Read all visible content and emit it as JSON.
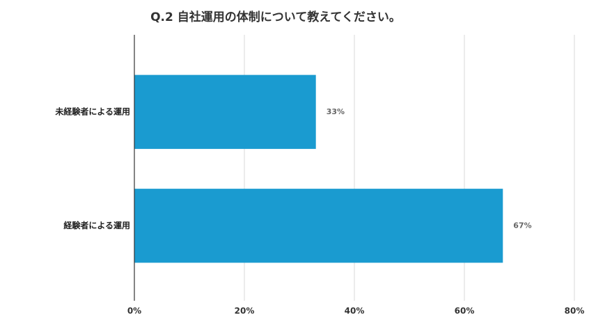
{
  "chart_data": {
    "type": "hbar",
    "title": "Q.2 自社運用の体制について教えてください。",
    "categories": [
      "未経験者による運用",
      "経験者による運用"
    ],
    "values": [
      33,
      67
    ],
    "value_labels": [
      "33%",
      "67%"
    ],
    "color": "#1a9bd0",
    "xlim": [
      0,
      80
    ],
    "xticks": [
      {
        "value": 0,
        "label": "0%"
      },
      {
        "value": 20,
        "label": "20%"
      },
      {
        "value": 40,
        "label": "40%"
      },
      {
        "value": 60,
        "label": "60%"
      },
      {
        "value": 80,
        "label": "80%"
      }
    ],
    "grid": true
  }
}
